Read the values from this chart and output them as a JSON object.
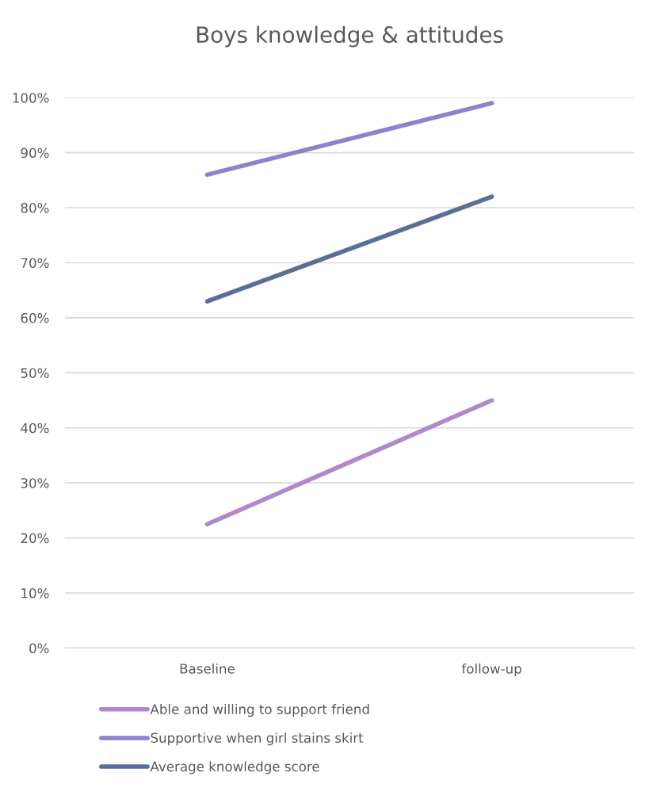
{
  "chart_data": {
    "type": "line",
    "title": "Boys knowledge & attitudes",
    "categories": [
      "Baseline",
      "follow-up"
    ],
    "series": [
      {
        "name": "Able and willing to support friend",
        "color": "#b088cc",
        "values": [
          22.5,
          45
        ]
      },
      {
        "name": "Supportive when girl stains skirt",
        "color": "#8c84c8",
        "values": [
          86,
          99
        ]
      },
      {
        "name": "Average knowledge score",
        "color": "#5a6f96",
        "values": [
          63,
          82
        ]
      }
    ],
    "ylim": [
      0,
      100
    ],
    "yticks": [
      {
        "value": 0,
        "label": "0%"
      },
      {
        "value": 10,
        "label": "10%"
      },
      {
        "value": 20,
        "label": "20%"
      },
      {
        "value": 30,
        "label": "30%"
      },
      {
        "value": 40,
        "label": "40%"
      },
      {
        "value": 50,
        "label": "50%"
      },
      {
        "value": 60,
        "label": "60%"
      },
      {
        "value": 70,
        "label": "70%"
      },
      {
        "value": 80,
        "label": "80%"
      },
      {
        "value": 90,
        "label": "90%"
      },
      {
        "value": 100,
        "label": "100%"
      }
    ],
    "grid": "y",
    "legend": "bottom",
    "marker": "none",
    "line_style": "solid"
  }
}
